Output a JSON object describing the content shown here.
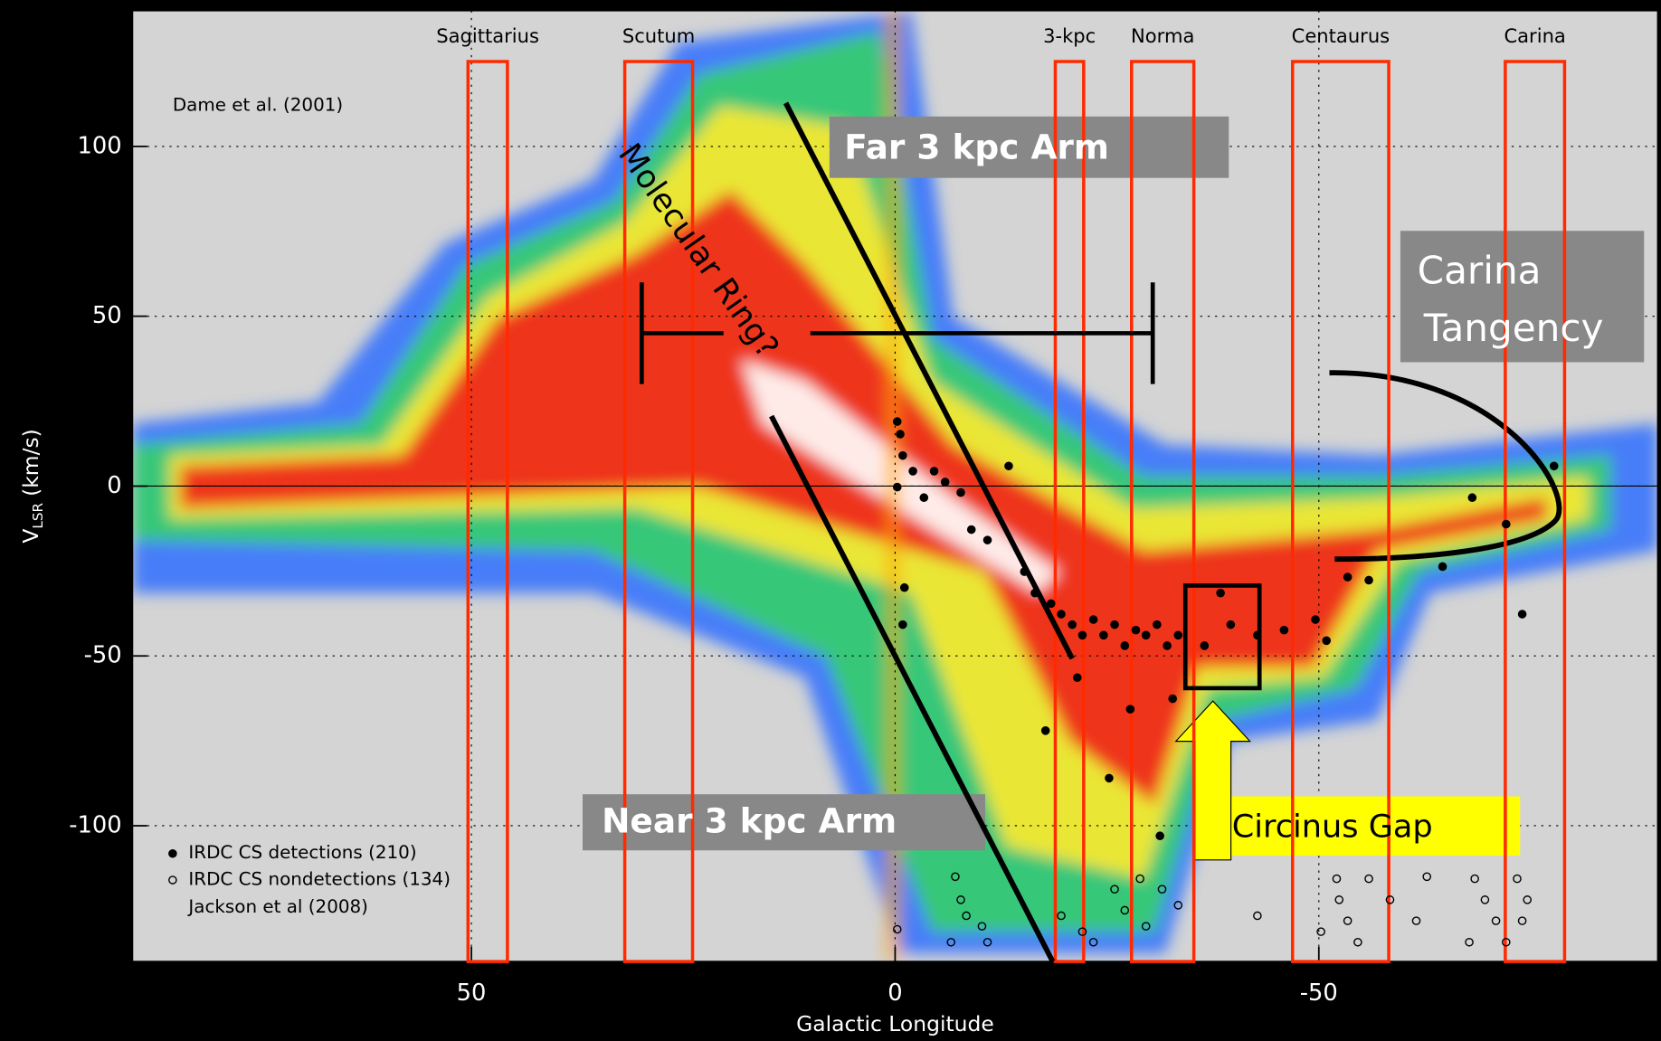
{
  "chart_data": {
    "type": "scatter",
    "x_label": "Galactic Longitude",
    "y_label": "V",
    "y_label_sub": "LSR",
    "y_label_unit": "(km/s)",
    "xlim": [
      90,
      -90
    ],
    "ylim": [
      -140,
      140
    ],
    "xticks": [
      50,
      0,
      -50
    ],
    "yticks": [
      100,
      50,
      0,
      -50,
      -100
    ],
    "grid": true,
    "credit": "Dame et al. (2001)",
    "legend_source": "Jackson et al (2008)",
    "series": [
      {
        "name": "IRDC CS detections (210)",
        "marker": "filled",
        "color": "#000000",
        "x": [
          -0.25,
          -0.6,
          -0.9,
          -0.25,
          -2.1,
          -3.4,
          -4.6,
          -5.9,
          -7.75,
          -9,
          -10.9,
          -13.4,
          -15.25,
          -16.5,
          -18.4,
          -19.6,
          -20.9,
          -22.1,
          -23.4,
          -24.6,
          -25.9,
          -27.1,
          -28.4,
          -29.6,
          -30.9,
          -32.1,
          -33.4,
          -21.5,
          -25.25,
          -17.75,
          -32.75,
          -36.5,
          -38.4,
          -42.75,
          -45.9,
          -50.9,
          -53.4,
          -64.6,
          -68.1,
          -72.1,
          -74,
          -77.75,
          -1.1,
          -0.9,
          -31.25,
          -27.75,
          -39.6,
          -49.6,
          -55.9
        ],
        "values": [
          19,
          15.3,
          9,
          -0.3,
          4.4,
          -3.4,
          4.4,
          1.2,
          -1.9,
          -12.8,
          -15.9,
          5.9,
          -25.2,
          -31.5,
          -34.6,
          -37.7,
          -40.8,
          -43.9,
          -39.3,
          -43.9,
          -40.8,
          -47,
          -42.4,
          -43.9,
          -40.8,
          -47,
          -43.9,
          -56.4,
          -86,
          -72,
          -62.6,
          -47,
          -31.5,
          -43.9,
          -42.4,
          -45.5,
          -26.8,
          -23.7,
          -3.4,
          -11.2,
          -37.7,
          5.9,
          -29.9,
          -40.8,
          -103,
          -65.7,
          -40.8,
          -39.3,
          -27.7
        ]
      },
      {
        "name": "IRDC CS nondetections (134)",
        "marker": "open",
        "color": "#000000",
        "x": [
          -7.1,
          -7.75,
          -8.4,
          -10.25,
          -10.9,
          -6.6,
          -0.25,
          -19.6,
          -22.1,
          -23.4,
          -25.9,
          -27.1,
          -28.9,
          -29.6,
          -31.5,
          -33.4,
          -42.75,
          -50.25,
          -52.1,
          -52.4,
          -53.4,
          -54.6,
          -55.9,
          -58.4,
          -61.5,
          -62.75,
          -68.4,
          -69.6,
          -70.9,
          -72.1,
          -73.4,
          -74.6,
          -74,
          -67.75
        ],
        "values": [
          -115,
          -121.8,
          -126.5,
          -129.6,
          -134.3,
          -134.3,
          -130.5,
          -126.5,
          -131.2,
          -134.3,
          -118.7,
          -124.9,
          -115.6,
          -129.6,
          -118.7,
          -123.4,
          -126.5,
          -131.2,
          -115.6,
          -121.8,
          -128,
          -134.3,
          -115.6,
          -121.8,
          -128,
          -115,
          -115.6,
          -121.8,
          -128,
          -134.3,
          -115.6,
          -121.8,
          -128,
          -134.3
        ]
      }
    ],
    "regions": [
      {
        "name": "Sagittarius",
        "x": [
          50.4,
          45.75
        ],
        "v_top": 125
      },
      {
        "name": "Scutum",
        "x": [
          31.9,
          23.9
        ],
        "v_top": 125
      },
      {
        "name": "3-kpc",
        "x": [
          -18.9,
          -22.25
        ],
        "v_top": 125
      },
      {
        "name": "Norma",
        "x": [
          -27.9,
          -35.25
        ],
        "v_top": 125
      },
      {
        "name": "Centaurus",
        "x": [
          -46.9,
          -58.25
        ],
        "v_top": 125
      },
      {
        "name": "Carina",
        "x": [
          -72,
          -79
        ],
        "v_top": 125
      }
    ],
    "arm_lines": [
      {
        "label": "Far 3 kpc Arm",
        "x": [
          12.9,
          -20.9
        ],
        "values": [
          112.8,
          -50.8
        ]
      },
      {
        "label": "Near 3 kpc Arm",
        "x": [
          14.6,
          -18.6
        ],
        "values": [
          20.6,
          -140
        ]
      }
    ],
    "ring_bar": {
      "x": [
        29.9,
        -30.4
      ],
      "value": 45
    },
    "ring_label": "Molecular Ring?",
    "carina_label": [
      "Carina",
      "Tangency"
    ],
    "circinus": {
      "label": "Circinus Gap",
      "x": [
        -34.25,
        -43
      ],
      "values": [
        -29.3,
        -59.5
      ]
    }
  }
}
